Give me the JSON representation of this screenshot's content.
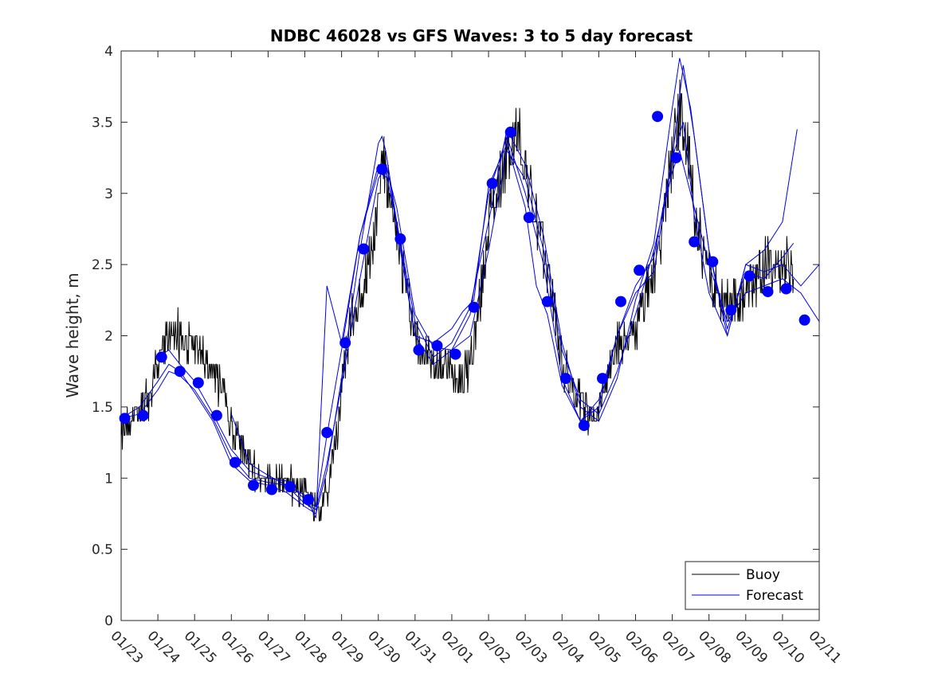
{
  "chart_data": {
    "type": "line",
    "title": "NDBC 46028 vs GFS Waves: 3 to 5 day forecast",
    "ylabel": "Wave height, m",
    "xlabel": "",
    "ylim": [
      0,
      4
    ],
    "xlim": [
      0,
      19
    ],
    "yticks": [
      0,
      0.5,
      1,
      1.5,
      2,
      2.5,
      3,
      3.5,
      4
    ],
    "ytick_labels": [
      "0",
      "0.5",
      "1",
      "1.5",
      "2",
      "2.5",
      "3",
      "3.5",
      "4"
    ],
    "xticks": [
      0,
      1,
      2,
      3,
      4,
      5,
      6,
      7,
      8,
      9,
      10,
      11,
      12,
      13,
      14,
      15,
      16,
      17,
      18,
      19
    ],
    "xtick_labels": [
      "01/23",
      "01/24",
      "01/25",
      "01/26",
      "01/27",
      "01/28",
      "01/29",
      "01/30",
      "01/31",
      "02/01",
      "02/02",
      "02/03",
      "02/04",
      "02/05",
      "02/06",
      "02/07",
      "02/08",
      "02/09",
      "02/10",
      "02/11"
    ],
    "legend": {
      "placement": "bottom-right",
      "entries": [
        "Buoy",
        "Forecast"
      ]
    },
    "colors": {
      "buoy": "#000000",
      "forecast": "#0000e6",
      "markers": "#0000ff",
      "axes": "#262626"
    },
    "buoy_keypoints": {
      "x": [
        0,
        0.2,
        0.5,
        0.8,
        1.0,
        1.3,
        1.6,
        2.0,
        2.4,
        2.8,
        3.0,
        3.3,
        3.6,
        4.0,
        4.3,
        4.6,
        5.0,
        5.2,
        5.4,
        5.6,
        5.8,
        6.0,
        6.2,
        6.5,
        6.8,
        7.0,
        7.1,
        7.2,
        7.4,
        7.6,
        7.8,
        8.0,
        8.3,
        8.6,
        9.0,
        9.3,
        9.5,
        9.8,
        10.0,
        10.3,
        10.6,
        10.8,
        11.0,
        11.2,
        11.5,
        11.8,
        12.0,
        12.3,
        12.6,
        12.8,
        13.0,
        13.3,
        13.6,
        14.0,
        14.3,
        14.6,
        14.8,
        15.0,
        15.2,
        15.4,
        15.6,
        15.8,
        16.0,
        16.3,
        16.6,
        17.0,
        17.3,
        17.6,
        18.0,
        18.3
      ],
      "y": [
        1.3,
        1.4,
        1.5,
        1.6,
        1.8,
        2.0,
        2.0,
        1.9,
        1.8,
        1.6,
        1.4,
        1.2,
        1.05,
        1.0,
        0.97,
        0.95,
        0.9,
        0.8,
        0.75,
        0.9,
        1.2,
        1.6,
        2.0,
        2.3,
        2.6,
        2.9,
        3.3,
        3.1,
        2.8,
        2.6,
        2.3,
        2.0,
        1.85,
        1.8,
        1.75,
        1.7,
        1.8,
        2.3,
        2.8,
        3.1,
        3.3,
        3.4,
        3.2,
        2.9,
        2.6,
        2.2,
        1.8,
        1.6,
        1.5,
        1.45,
        1.5,
        1.8,
        2.0,
        2.0,
        2.3,
        2.5,
        2.9,
        3.3,
        3.6,
        3.3,
        2.9,
        2.6,
        2.4,
        2.3,
        2.25,
        2.3,
        2.4,
        2.5,
        2.5,
        2.45
      ]
    },
    "forecast_series": [
      {
        "name": "Forecast",
        "x": [
          0,
          0.5,
          1,
          1.3,
          1.6,
          2,
          2.5,
          3,
          3.5,
          4,
          4.5,
          5,
          5.3,
          5.6,
          6,
          6.5,
          7,
          7.2,
          7.5,
          8,
          8.5,
          9,
          9.5,
          10,
          10.5,
          11,
          11.5,
          12,
          12.5,
          13,
          13.5,
          14,
          14.5,
          15,
          15.2,
          15.5,
          16,
          16.5,
          17,
          17.5,
          18,
          18.5,
          19
        ],
        "y": [
          1.42,
          1.45,
          1.62,
          1.75,
          1.72,
          1.62,
          1.42,
          1.15,
          1.0,
          0.97,
          0.95,
          0.82,
          0.78,
          1.1,
          1.65,
          2.4,
          3.1,
          3.2,
          2.9,
          2.15,
          1.92,
          1.9,
          2.0,
          2.6,
          3.3,
          3.1,
          2.6,
          1.9,
          1.55,
          1.45,
          1.75,
          2.15,
          2.6,
          3.15,
          3.3,
          3.0,
          2.5,
          2.1,
          2.3,
          2.35,
          2.4,
          2.3,
          2.1
        ]
      },
      {
        "name": "Forecast",
        "x": [
          0,
          0.5,
          1,
          1.3,
          1.6,
          2,
          2.5,
          3,
          3.5,
          4,
          4.5,
          5,
          5.3,
          5.6,
          6,
          6.5,
          7,
          7.1,
          7.2,
          7.5,
          8,
          8.5,
          9,
          9.5,
          10,
          10.5,
          11,
          11.5,
          12,
          12.5,
          13,
          13.5,
          14,
          14.5,
          15,
          15.2,
          15.5,
          16,
          16.5,
          17,
          17.5,
          18,
          18.3
        ],
        "y": [
          1.42,
          1.5,
          1.68,
          1.8,
          1.75,
          1.6,
          1.4,
          1.1,
          0.98,
          0.95,
          0.9,
          0.8,
          0.75,
          1.05,
          1.7,
          2.6,
          3.35,
          3.4,
          3.3,
          2.8,
          2.1,
          1.85,
          1.95,
          2.2,
          2.8,
          3.45,
          3.2,
          2.7,
          1.95,
          1.5,
          1.4,
          1.7,
          2.25,
          2.65,
          3.6,
          3.95,
          3.6,
          2.6,
          2.05,
          2.45,
          2.4,
          2.55,
          2.65
        ]
      },
      {
        "name": "Forecast",
        "x": [
          1,
          1.3,
          1.6,
          2,
          2.5,
          3,
          3.5,
          4,
          4.5,
          5,
          5.3,
          5.6,
          6,
          6.5,
          7,
          7.2,
          7.5,
          8,
          8.5,
          9,
          9.5,
          10,
          10.5,
          11,
          11.5,
          12,
          12.5,
          13,
          13.5,
          14,
          14.5,
          15,
          15.3,
          15.6,
          16,
          16.5,
          17,
          17.5,
          18,
          18.5,
          19
        ],
        "y": [
          1.85,
          1.9,
          1.8,
          1.68,
          1.45,
          1.2,
          1.05,
          1.0,
          0.98,
          0.85,
          0.8,
          1.3,
          1.9,
          2.7,
          3.2,
          3.15,
          2.8,
          2.0,
          1.8,
          1.9,
          2.15,
          3.0,
          3.4,
          3.0,
          2.5,
          1.7,
          1.4,
          1.5,
          2.0,
          2.3,
          2.45,
          3.25,
          3.9,
          3.4,
          2.6,
          2.0,
          2.5,
          2.45,
          2.5,
          2.35,
          2.5
        ]
      },
      {
        "name": "Forecast",
        "x": [
          3,
          3.5,
          4,
          4.5,
          5,
          5.3,
          5.6,
          6,
          6.5,
          7,
          7.3,
          7.6,
          8,
          8.5,
          9,
          9.3,
          9.6,
          10,
          10.5,
          11,
          11.3,
          11.6,
          12,
          12.5,
          13,
          13.5,
          14,
          14.5,
          15,
          15.3,
          15.6,
          16,
          16.5,
          17,
          17.5,
          18,
          18.4
        ],
        "y": [
          1.45,
          1.1,
          1.02,
          0.95,
          0.88,
          0.72,
          2.35,
          1.95,
          2.7,
          3.15,
          3.1,
          2.6,
          2.0,
          1.95,
          2.05,
          2.17,
          2.25,
          3.05,
          3.35,
          2.9,
          2.35,
          2.15,
          1.65,
          1.4,
          1.55,
          2.0,
          2.35,
          2.55,
          3.25,
          3.5,
          2.85,
          2.3,
          2.0,
          2.5,
          2.6,
          2.8,
          3.45
        ]
      }
    ],
    "marker_points": {
      "x": [
        0.1,
        0.6,
        1.1,
        1.6,
        2.1,
        2.6,
        3.1,
        3.6,
        4.1,
        4.6,
        5.1,
        5.6,
        6.1,
        6.6,
        7.1,
        7.6,
        8.1,
        8.6,
        9.1,
        9.6,
        10.1,
        10.6,
        11.1,
        11.6,
        12.1,
        12.6,
        13.1,
        13.6,
        14.1,
        14.6,
        15.1,
        15.6,
        16.1,
        16.6,
        17.1,
        17.6,
        18.1,
        18.6
      ],
      "y": [
        1.42,
        1.44,
        1.85,
        1.75,
        1.67,
        1.44,
        1.11,
        0.95,
        0.92,
        0.94,
        0.85,
        1.32,
        1.95,
        2.61,
        3.17,
        2.68,
        1.9,
        1.93,
        1.87,
        2.2,
        3.07,
        3.43,
        2.83,
        2.24,
        1.7,
        1.37,
        1.7,
        2.24,
        2.46,
        3.54,
        3.25,
        2.66,
        2.52,
        2.18,
        2.42,
        2.31,
        2.33,
        2.11
      ]
    }
  }
}
